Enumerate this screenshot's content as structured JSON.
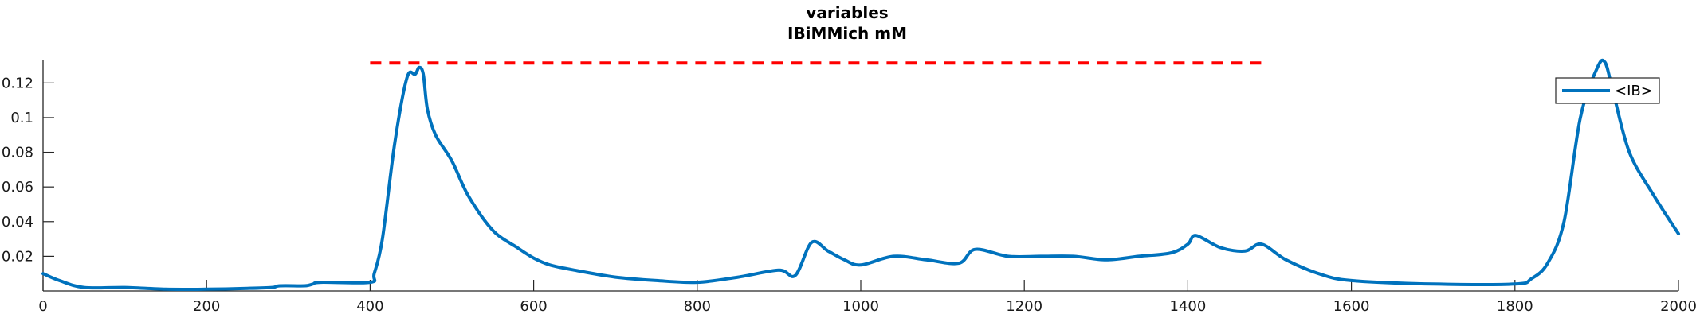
{
  "chart_data": {
    "type": "line",
    "title": [
      "variables",
      "IBiMMich mM"
    ],
    "xlabel": "",
    "ylabel": "",
    "xlim": [
      0,
      2000
    ],
    "ylim": [
      0,
      0.133
    ],
    "xticks": [
      0,
      200,
      400,
      600,
      800,
      1000,
      1200,
      1400,
      1600,
      1800,
      2000
    ],
    "xtick_labels": [
      "0",
      "200",
      "400",
      "600",
      "800",
      "1000",
      "1200",
      "1400",
      "1600",
      "1800",
      "2000"
    ],
    "yticks": [
      0.02,
      0.04,
      0.06,
      0.08,
      0.1,
      0.12
    ],
    "ytick_labels": [
      "0.02",
      "0.04",
      "0.06",
      "0.08",
      "0.1",
      "0.12"
    ],
    "grid": false,
    "legend_position": "top-right",
    "reference_line": {
      "y": 0.1315,
      "x_start": 400,
      "x_end": 1490,
      "color": "#ff0000",
      "style": "dashed"
    },
    "series": [
      {
        "name": "<IB>",
        "color": "#0072bd",
        "x": [
          0,
          20,
          50,
          100,
          150,
          200,
          250,
          280,
          290,
          320,
          330,
          340,
          400,
          405,
          415,
          430,
          445,
          455,
          460,
          465,
          470,
          480,
          500,
          520,
          550,
          580,
          600,
          620,
          650,
          700,
          750,
          800,
          850,
          900,
          920,
          940,
          960,
          980,
          1000,
          1040,
          1080,
          1120,
          1140,
          1180,
          1220,
          1260,
          1300,
          1340,
          1380,
          1400,
          1410,
          1440,
          1470,
          1490,
          1520,
          1560,
          1600,
          1700,
          1800,
          1820,
          1840,
          1860,
          1880,
          1900,
          1910,
          1920,
          1940,
          1970,
          2000
        ],
        "y": [
          0.01,
          0.006,
          0.002,
          0.002,
          0.001,
          0.001,
          0.0015,
          0.002,
          0.003,
          0.003,
          0.004,
          0.005,
          0.005,
          0.01,
          0.03,
          0.085,
          0.123,
          0.125,
          0.129,
          0.125,
          0.105,
          0.09,
          0.075,
          0.055,
          0.035,
          0.025,
          0.019,
          0.015,
          0.012,
          0.008,
          0.006,
          0.005,
          0.008,
          0.012,
          0.009,
          0.028,
          0.023,
          0.018,
          0.015,
          0.02,
          0.018,
          0.016,
          0.024,
          0.02,
          0.02,
          0.02,
          0.018,
          0.02,
          0.022,
          0.027,
          0.032,
          0.025,
          0.023,
          0.027,
          0.018,
          0.01,
          0.006,
          0.004,
          0.004,
          0.007,
          0.016,
          0.04,
          0.1,
          0.128,
          0.132,
          0.115,
          0.08,
          0.055,
          0.033
        ]
      }
    ]
  }
}
